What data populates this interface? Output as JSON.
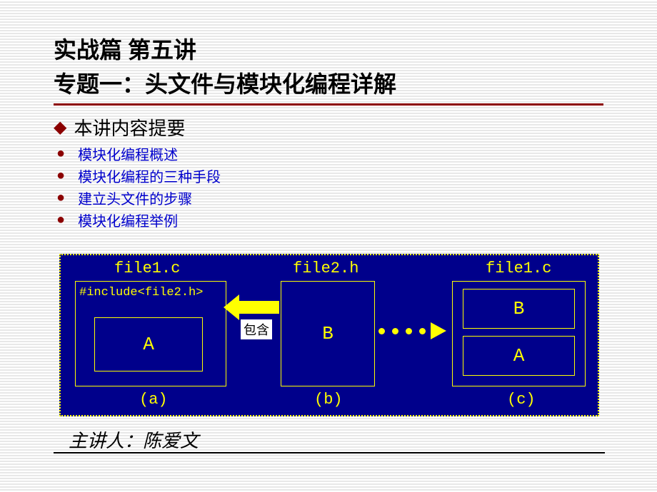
{
  "title_line1": "实战篇 第五讲",
  "title_line2": "专题一：头文件与模块化编程详解",
  "subtitle": "本讲内容提要",
  "bullets": [
    "模块化编程概述",
    "模块化编程的三种手段",
    "建立头文件的步骤",
    "模块化编程举例"
  ],
  "diagram": {
    "file1_label": "file1.c",
    "file2_label": "file2.h",
    "file1c_label": "file1.c",
    "include_text": "#include<file2.h>",
    "include_caption": "包含",
    "box_a": "A",
    "box_b": "B",
    "inner_b": "B",
    "inner_a": "A",
    "label_a": "(a)",
    "label_b": "(b)",
    "label_c": "(c)",
    "colors": {
      "background": "#00008b",
      "border": "#ffff00",
      "text": "#ffff00",
      "arrow": "#ffff00",
      "caption_bg": "#ffffff"
    }
  },
  "presenter": "主讲人：陈爱文",
  "colors": {
    "title_color": "#000000",
    "underline_color": "#8b0000",
    "bullet_marker": "#8b0000",
    "bullet_text": "#0000cc",
    "slide_bg_stripe1": "#ffffff",
    "slide_bg_stripe2": "#e8e8e8"
  }
}
